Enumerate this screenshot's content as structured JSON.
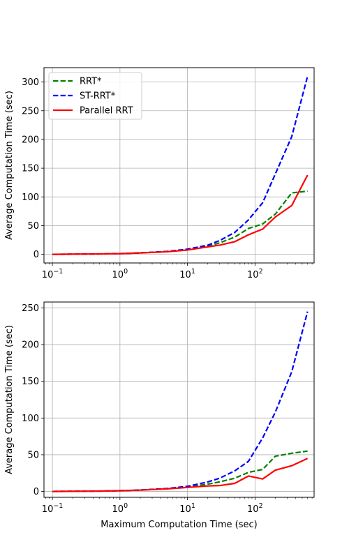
{
  "chart_data": [
    {
      "type": "line",
      "xscale": "log",
      "xlim": [
        0.075,
        750
      ],
      "ylim": [
        -15,
        325
      ],
      "x_ticks": [
        {
          "value": 0.1,
          "base": "10",
          "exp": "−1"
        },
        {
          "value": 1,
          "base": "10",
          "exp": "0"
        },
        {
          "value": 10,
          "base": "10",
          "exp": "1"
        },
        {
          "value": 100,
          "base": "10",
          "exp": "2"
        }
      ],
      "y_ticks": [
        "0",
        "50",
        "100",
        "150",
        "200",
        "250",
        "300"
      ],
      "xlabel": "",
      "ylabel": "Average Computation Time (sec)",
      "grid": true,
      "legend": {
        "position": "upper-left"
      },
      "x": [
        0.1,
        0.2,
        0.5,
        1,
        2,
        5,
        10,
        20,
        30,
        50,
        80,
        130,
        200,
        350,
        600
      ],
      "series": [
        {
          "name": "RRT*",
          "color": "#008000",
          "style": "dashed",
          "values": [
            0,
            0.3,
            0.7,
            1.2,
            2.5,
            5,
            8,
            14,
            20,
            30,
            45,
            53,
            70,
            107,
            110
          ]
        },
        {
          "name": "ST-RRT*",
          "color": "#0000ff",
          "style": "dashed",
          "values": [
            0,
            0.3,
            0.7,
            1.2,
            2.5,
            5,
            9,
            16,
            24,
            38,
            60,
            90,
            140,
            205,
            310
          ]
        },
        {
          "name": "Parallel RRT",
          "color": "#ff0000",
          "style": "solid",
          "values": [
            0,
            0.3,
            0.7,
            1.2,
            2.5,
            4.5,
            7.5,
            13,
            16,
            22,
            34,
            44,
            65,
            85,
            138
          ]
        }
      ]
    },
    {
      "type": "line",
      "xscale": "log",
      "xlim": [
        0.075,
        750
      ],
      "ylim": [
        -8,
        258
      ],
      "x_ticks": [
        {
          "value": 0.1,
          "base": "10",
          "exp": "−1"
        },
        {
          "value": 1,
          "base": "10",
          "exp": "0"
        },
        {
          "value": 10,
          "base": "10",
          "exp": "1"
        },
        {
          "value": 100,
          "base": "10",
          "exp": "2"
        }
      ],
      "y_ticks": [
        "0",
        "50",
        "100",
        "150",
        "200",
        "250"
      ],
      "xlabel": "Maximum Computation Time (sec)",
      "ylabel": "Average Computation Time (sec)",
      "grid": true,
      "legend": null,
      "x": [
        0.1,
        0.2,
        0.5,
        1,
        2,
        5,
        10,
        20,
        30,
        50,
        80,
        130,
        200,
        350,
        600
      ],
      "series": [
        {
          "name": "RRT*",
          "color": "#008000",
          "style": "dashed",
          "values": [
            0,
            0.2,
            0.5,
            1,
            1.8,
            3.8,
            6,
            10,
            13,
            18,
            26,
            30,
            48,
            52,
            55
          ]
        },
        {
          "name": "ST-RRT*",
          "color": "#0000ff",
          "style": "dashed",
          "values": [
            0,
            0.2,
            0.5,
            1,
            2,
            4,
            7,
            13,
            18,
            28,
            41,
            73,
            108,
            163,
            245
          ]
        },
        {
          "name": "Parallel RRT",
          "color": "#ff0000",
          "style": "solid",
          "values": [
            0,
            0.2,
            0.5,
            1,
            1.8,
            3.5,
            5.5,
            7.5,
            8,
            11,
            21,
            17,
            29,
            35,
            45
          ]
        }
      ]
    }
  ]
}
